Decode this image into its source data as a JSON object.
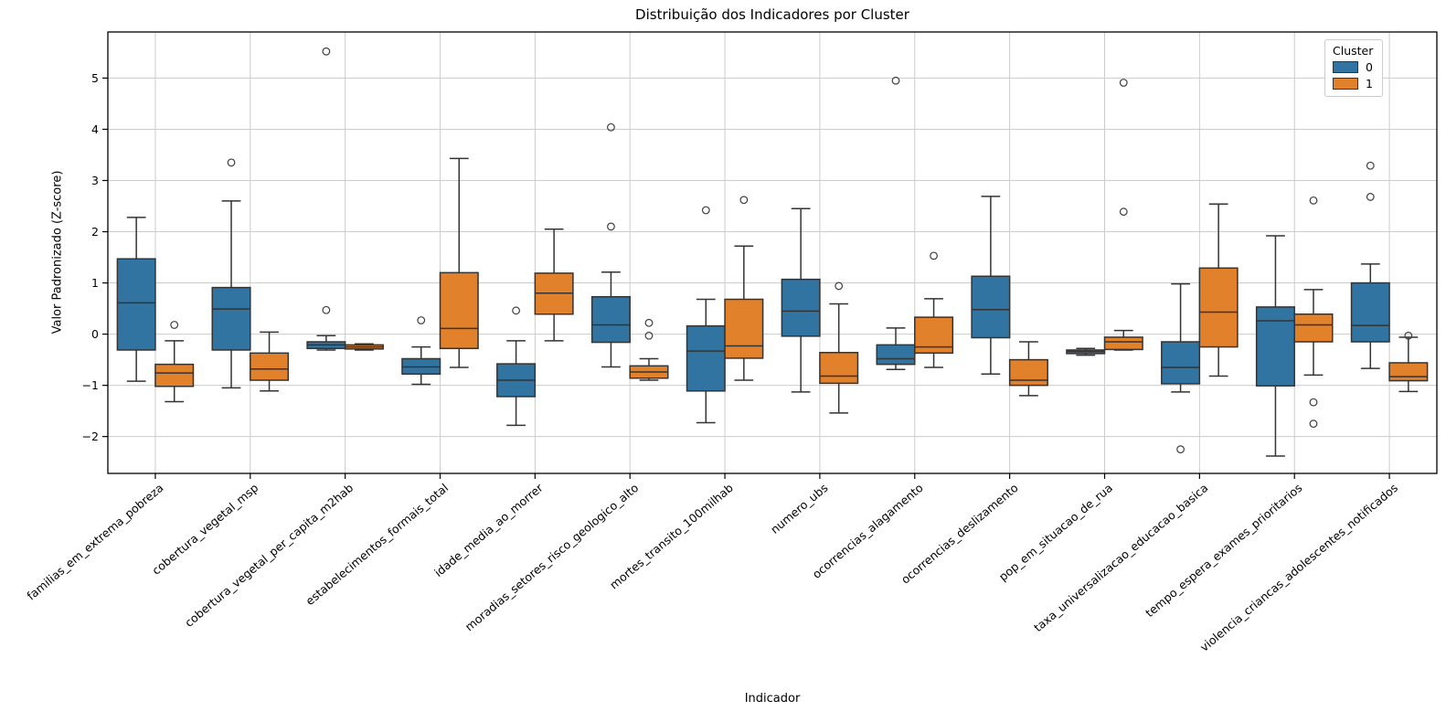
{
  "chart_data": {
    "type": "grouped_boxplot",
    "title": "Distribuição dos Indicadores por Cluster",
    "xlabel": "Indicador",
    "ylabel": "Valor Padronizado (Z-score)",
    "ylim": [
      -2.72,
      5.9
    ],
    "yticks": [
      -2,
      -1,
      0,
      1,
      2,
      3,
      4,
      5
    ],
    "grid": true,
    "legend": {
      "title": "Cluster",
      "position": "upper right",
      "items": [
        {
          "label": "0",
          "color": "#3274a1"
        },
        {
          "label": "1",
          "color": "#e1812c"
        }
      ]
    },
    "groups": [
      {
        "label": "familias_em_extrema_pobreza",
        "cluster0": {
          "whislo": -0.92,
          "q1": -0.31,
          "median": 0.61,
          "q3": 1.47,
          "whishi": 2.28,
          "outliers": []
        },
        "cluster1": {
          "whislo": -1.32,
          "q1": -1.02,
          "median": -0.76,
          "q3": -0.59,
          "whishi": -0.13,
          "outliers": [
            0.18
          ]
        }
      },
      {
        "label": "cobertura_vegetal_msp",
        "cluster0": {
          "whislo": -1.05,
          "q1": -0.31,
          "median": 0.49,
          "q3": 0.91,
          "whishi": 2.6,
          "outliers": [
            3.35
          ]
        },
        "cluster1": {
          "whislo": -1.11,
          "q1": -0.9,
          "median": -0.68,
          "q3": -0.37,
          "whishi": 0.04,
          "outliers": []
        }
      },
      {
        "label": "cobertura_vegetal_per_capita_m2hab",
        "cluster0": {
          "whislo": -0.31,
          "q1": -0.28,
          "median": -0.21,
          "q3": -0.15,
          "whishi": -0.03,
          "outliers": [
            0.47,
            5.52
          ]
        },
        "cluster1": {
          "whislo": -0.31,
          "q1": -0.29,
          "median": -0.25,
          "q3": -0.21,
          "whishi": -0.19,
          "outliers": []
        }
      },
      {
        "label": "estabelecimentos_formais_total",
        "cluster0": {
          "whislo": -0.98,
          "q1": -0.78,
          "median": -0.64,
          "q3": -0.48,
          "whishi": -0.25,
          "outliers": [
            0.27
          ]
        },
        "cluster1": {
          "whislo": -0.65,
          "q1": -0.28,
          "median": 0.11,
          "q3": 1.2,
          "whishi": 3.43,
          "outliers": []
        }
      },
      {
        "label": "idade_media_ao_morrer",
        "cluster0": {
          "whislo": -1.78,
          "q1": -1.22,
          "median": -0.9,
          "q3": -0.58,
          "whishi": -0.13,
          "outliers": [
            0.46
          ]
        },
        "cluster1": {
          "whislo": -0.13,
          "q1": 0.39,
          "median": 0.8,
          "q3": 1.19,
          "whishi": 2.05,
          "outliers": []
        }
      },
      {
        "label": "moradias_setores_risco_geologico_alto",
        "cluster0": {
          "whislo": -0.64,
          "q1": -0.16,
          "median": 0.18,
          "q3": 0.73,
          "whishi": 1.21,
          "outliers": [
            2.1,
            4.04
          ]
        },
        "cluster1": {
          "whislo": -0.9,
          "q1": -0.86,
          "median": -0.74,
          "q3": -0.62,
          "whishi": -0.48,
          "outliers": [
            -0.03,
            0.22
          ]
        }
      },
      {
        "label": "mortes_transito_100milhab",
        "cluster0": {
          "whislo": -1.73,
          "q1": -1.11,
          "median": -0.33,
          "q3": 0.16,
          "whishi": 0.68,
          "outliers": [
            2.42
          ]
        },
        "cluster1": {
          "whislo": -0.9,
          "q1": -0.47,
          "median": -0.23,
          "q3": 0.68,
          "whishi": 1.72,
          "outliers": [
            2.62
          ]
        }
      },
      {
        "label": "numero_ubs",
        "cluster0": {
          "whislo": -1.13,
          "q1": -0.04,
          "median": 0.45,
          "q3": 1.07,
          "whishi": 2.45,
          "outliers": []
        },
        "cluster1": {
          "whislo": -1.54,
          "q1": -0.96,
          "median": -0.82,
          "q3": -0.36,
          "whishi": 0.59,
          "outliers": [
            0.94
          ]
        }
      },
      {
        "label": "ocorrencias_alagamento",
        "cluster0": {
          "whislo": -0.69,
          "q1": -0.59,
          "median": -0.48,
          "q3": -0.21,
          "whishi": 0.12,
          "outliers": [
            4.95
          ]
        },
        "cluster1": {
          "whislo": -0.65,
          "q1": -0.37,
          "median": -0.25,
          "q3": 0.33,
          "whishi": 0.69,
          "outliers": [
            1.53
          ]
        }
      },
      {
        "label": "ocorrencias_deslizamento",
        "cluster0": {
          "whislo": -0.78,
          "q1": -0.07,
          "median": 0.48,
          "q3": 1.13,
          "whishi": 2.69,
          "outliers": []
        },
        "cluster1": {
          "whislo": -1.2,
          "q1": -1.0,
          "median": -0.9,
          "q3": -0.5,
          "whishi": -0.15,
          "outliers": []
        }
      },
      {
        "label": "pop_em_situacao_de_rua",
        "cluster0": {
          "whislo": -0.41,
          "q1": -0.38,
          "median": -0.34,
          "q3": -0.31,
          "whishi": -0.28,
          "outliers": []
        },
        "cluster1": {
          "whislo": -0.31,
          "q1": -0.3,
          "median": -0.15,
          "q3": -0.06,
          "whishi": 0.07,
          "outliers": [
            2.39,
            4.91
          ]
        }
      },
      {
        "label": "taxa_universalizacao_educacao_basica",
        "cluster0": {
          "whislo": -1.13,
          "q1": -0.97,
          "median": -0.65,
          "q3": -0.15,
          "whishi": 0.98,
          "outliers": [
            -2.25
          ]
        },
        "cluster1": {
          "whislo": -0.82,
          "q1": -0.25,
          "median": 0.43,
          "q3": 1.29,
          "whishi": 2.54,
          "outliers": []
        }
      },
      {
        "label": "tempo_espera_exames_prioritarios",
        "cluster0": {
          "whislo": -2.38,
          "q1": -1.01,
          "median": 0.26,
          "q3": 0.53,
          "whishi": 1.92,
          "outliers": []
        },
        "cluster1": {
          "whislo": -0.8,
          "q1": -0.15,
          "median": 0.18,
          "q3": 0.39,
          "whishi": 0.87,
          "outliers": [
            -1.75,
            -1.33,
            2.61
          ]
        }
      },
      {
        "label": "violencia_criancas_adolescentes_notificados",
        "cluster0": {
          "whislo": -0.67,
          "q1": -0.15,
          "median": 0.17,
          "q3": 1.0,
          "whishi": 1.37,
          "outliers": [
            2.68,
            3.29
          ]
        },
        "cluster1": {
          "whislo": -1.12,
          "q1": -0.91,
          "median": -0.83,
          "q3": -0.56,
          "whishi": -0.06,
          "outliers": [
            -0.03
          ]
        }
      }
    ]
  },
  "colors": {
    "cluster0": "#3274a1",
    "cluster1": "#e1812c",
    "box_edge": "#333333",
    "flier_edge": "#3d3d3d",
    "grid": "#cccccc",
    "spine": "#000000",
    "text": "#000000"
  }
}
